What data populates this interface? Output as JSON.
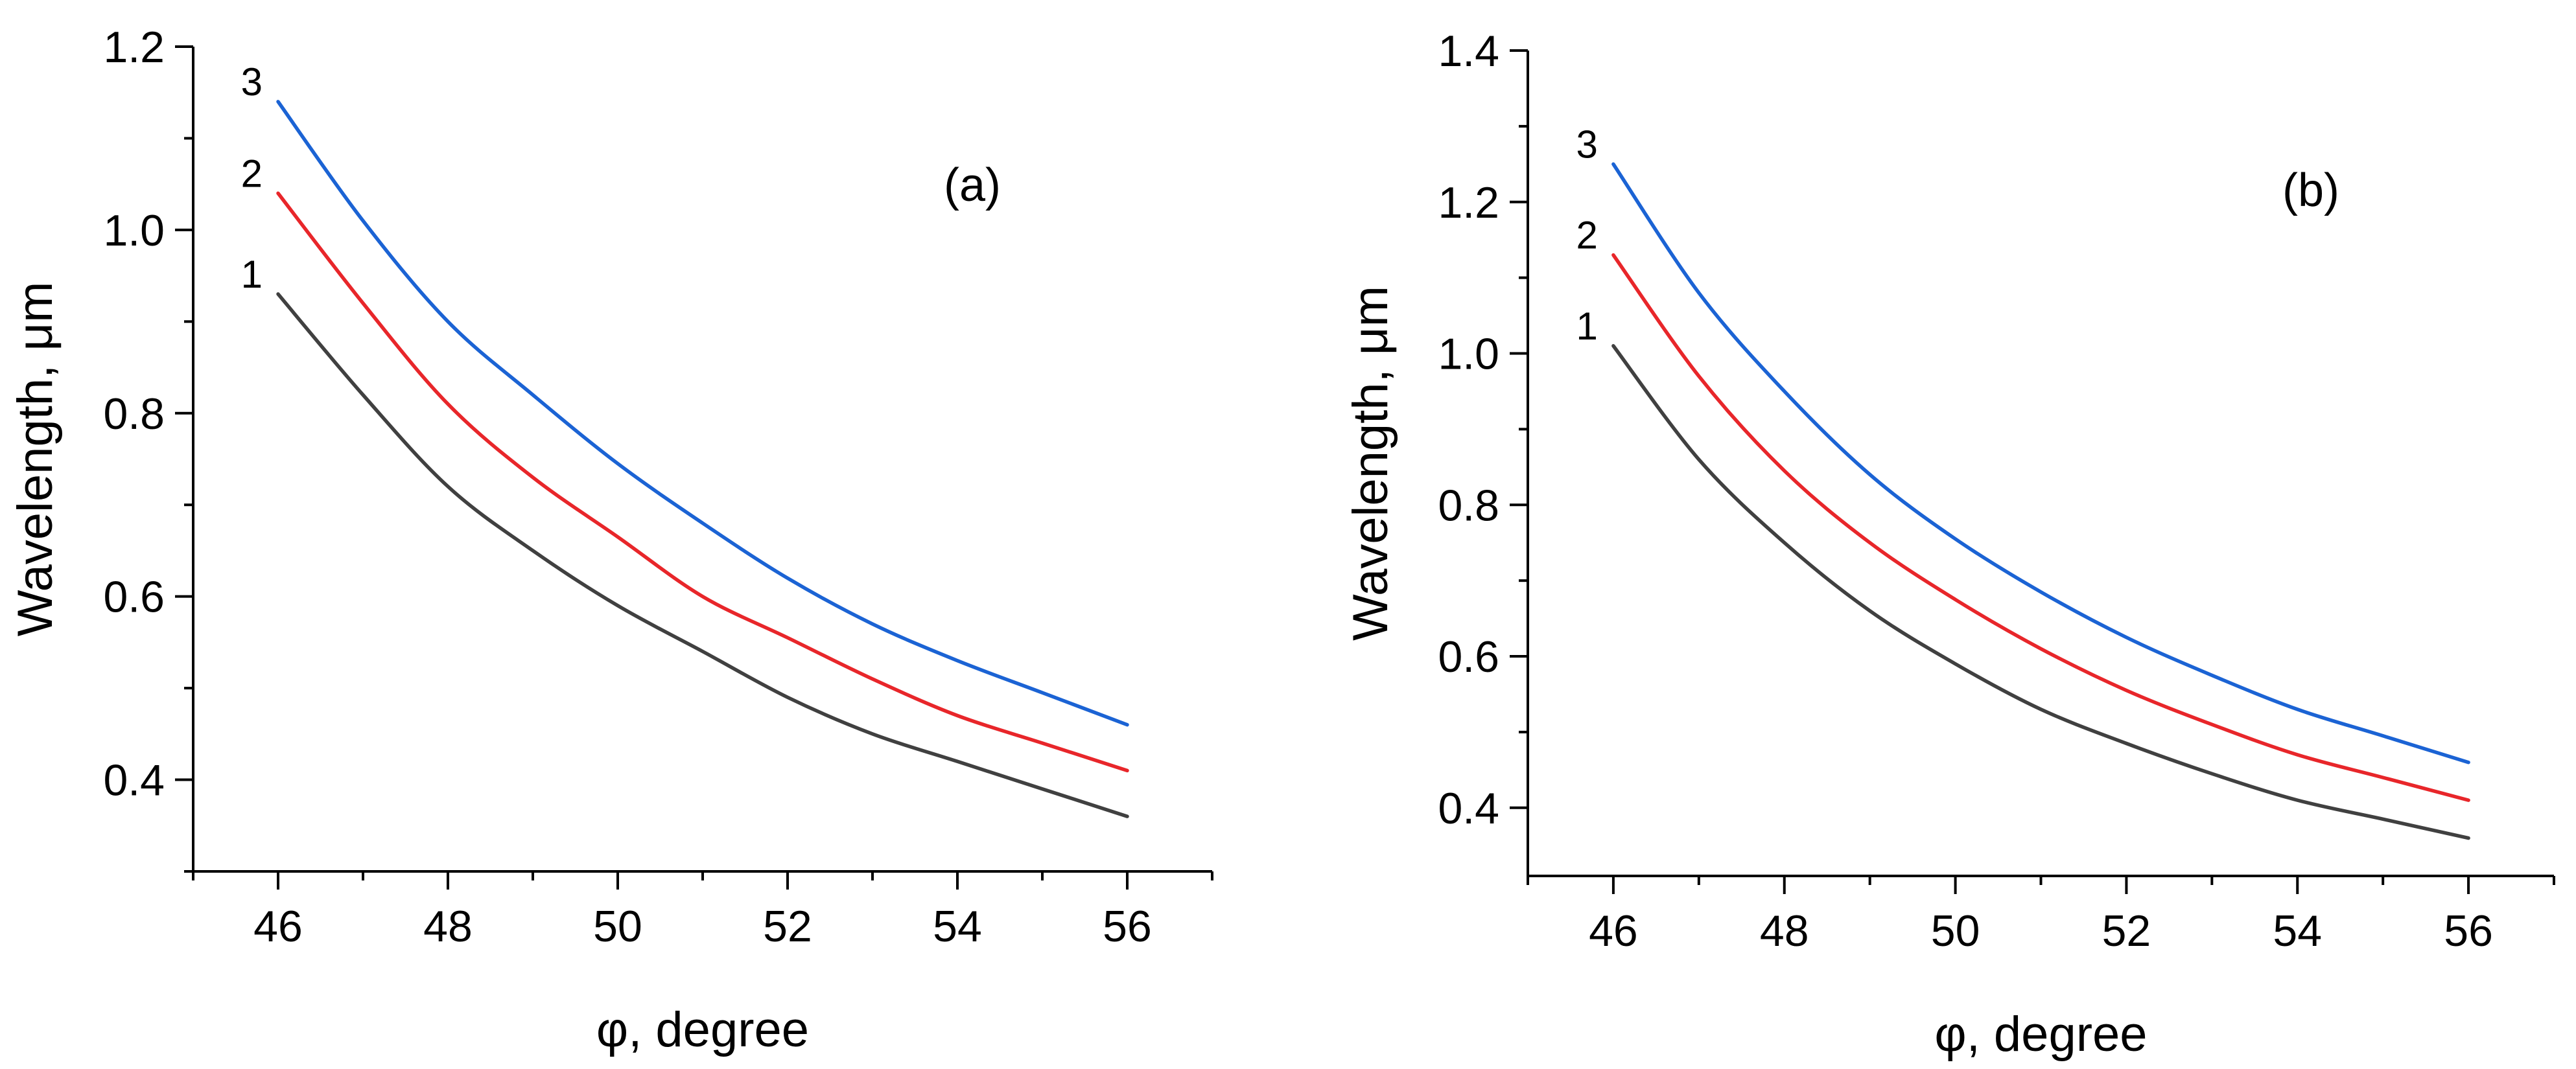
{
  "chart_data": [
    {
      "type": "line",
      "panel_label": "(a)",
      "xlabel": "φ, degree",
      "ylabel": "Wavelength, μm",
      "xlim": [
        45,
        57
      ],
      "ylim": [
        0.3,
        1.2
      ],
      "x_ticks": [
        46,
        48,
        50,
        52,
        54,
        56
      ],
      "x_tick_labels": [
        "46",
        "48",
        "50",
        "52",
        "54",
        "56"
      ],
      "y_ticks": [
        0.4,
        0.6,
        0.8,
        1.0,
        1.2
      ],
      "y_tick_labels": [
        "0.4",
        "0.6",
        "0.8",
        "1.0",
        "1.2"
      ],
      "grid": false,
      "x": [
        46,
        47,
        48,
        49,
        50,
        51,
        52,
        53,
        54,
        55,
        56
      ],
      "series": [
        {
          "name": "1",
          "color": "#404040",
          "values": [
            0.93,
            0.82,
            0.72,
            0.65,
            0.59,
            0.54,
            0.49,
            0.45,
            0.42,
            0.39,
            0.36
          ]
        },
        {
          "name": "2",
          "color": "#e8262a",
          "values": [
            1.04,
            0.92,
            0.81,
            0.73,
            0.665,
            0.6,
            0.555,
            0.51,
            0.47,
            0.44,
            0.41
          ]
        },
        {
          "name": "3",
          "color": "#1b63d4",
          "values": [
            1.14,
            1.01,
            0.9,
            0.82,
            0.745,
            0.68,
            0.62,
            0.57,
            0.53,
            0.495,
            0.46
          ]
        }
      ]
    },
    {
      "type": "line",
      "panel_label": "(b)",
      "xlabel": "φ, degree",
      "ylabel": "Wavelength, μm",
      "xlim": [
        45,
        57
      ],
      "ylim": [
        0.31,
        1.4
      ],
      "x_ticks": [
        46,
        48,
        50,
        52,
        54,
        56
      ],
      "x_tick_labels": [
        "46",
        "48",
        "50",
        "52",
        "54",
        "56"
      ],
      "y_ticks": [
        0.4,
        0.6,
        0.8,
        1.0,
        1.2,
        1.4
      ],
      "y_tick_labels": [
        "0.4",
        "0.6",
        "0.8",
        "1.0",
        "1.2",
        "1.4"
      ],
      "grid": false,
      "x": [
        46,
        47,
        48,
        49,
        50,
        51,
        52,
        53,
        54,
        55,
        56
      ],
      "series": [
        {
          "name": "1",
          "color": "#404040",
          "values": [
            1.01,
            0.86,
            0.75,
            0.66,
            0.59,
            0.53,
            0.485,
            0.445,
            0.41,
            0.385,
            0.36
          ]
        },
        {
          "name": "2",
          "color": "#e8262a",
          "values": [
            1.13,
            0.97,
            0.845,
            0.75,
            0.675,
            0.61,
            0.555,
            0.51,
            0.47,
            0.44,
            0.41
          ]
        },
        {
          "name": "3",
          "color": "#1b63d4",
          "values": [
            1.25,
            1.08,
            0.95,
            0.84,
            0.755,
            0.685,
            0.625,
            0.575,
            0.53,
            0.495,
            0.46
          ]
        }
      ]
    }
  ]
}
